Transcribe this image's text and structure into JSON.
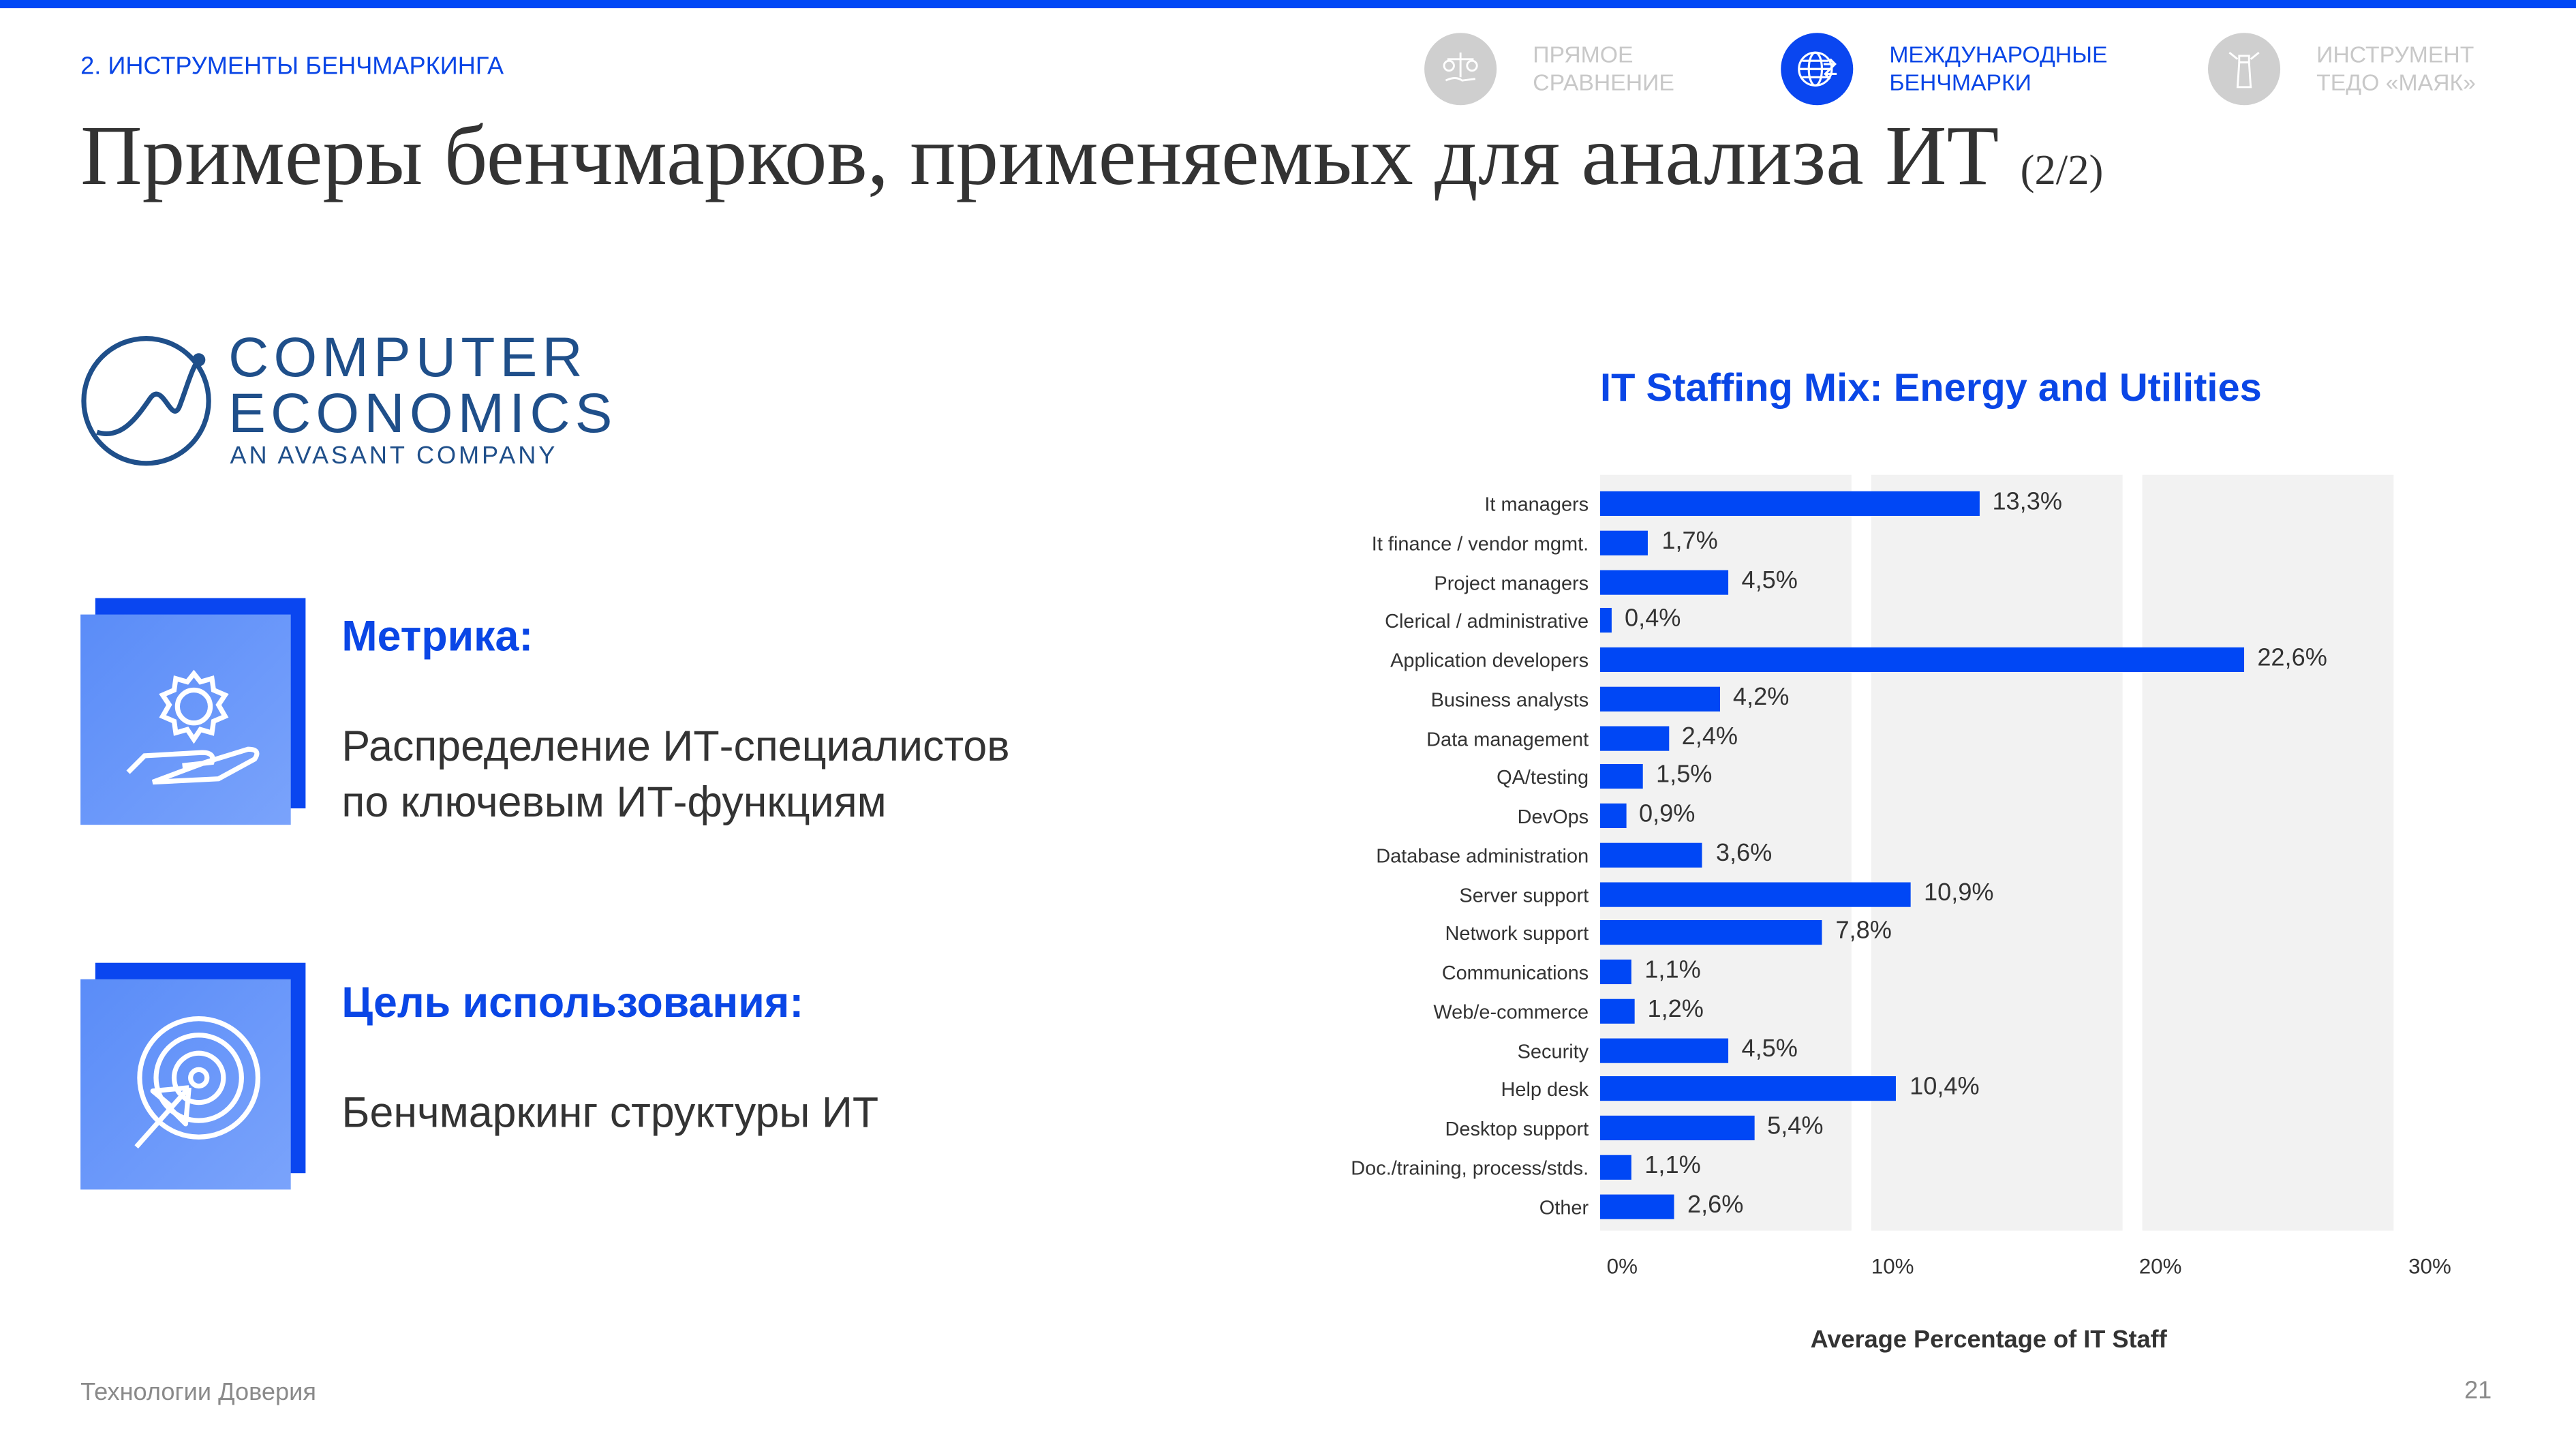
{
  "header": {
    "section": "2. ИНСТРУМЕНТЫ БЕНЧМАРКИНГА",
    "title": "Примеры бенчмарков, применяемых для анализа ИТ",
    "title_suffix": "(2/2)"
  },
  "nav": [
    {
      "line1": "ПРЯМОЕ",
      "line2": "СРАВНЕНИЕ",
      "icon": "scales-hand-icon",
      "active": false
    },
    {
      "line1": "МЕЖДУНАРОДНЫЕ",
      "line2": "БЕНЧМАРКИ",
      "icon": "globe-arrows-icon",
      "active": true
    },
    {
      "line1": "ИНСТРУМЕНТ",
      "line2": "ТЕДО «МАЯК»",
      "icon": "lighthouse-icon",
      "active": false
    }
  ],
  "logo": {
    "line1": "COMPUTER",
    "line2": "ECONOMICS",
    "line3": "AN AVASANT COMPANY"
  },
  "metric": {
    "heading": "Метрика:",
    "line1": "Распределение ИТ-специалистов",
    "line2": "по ключевым ИТ-функциям",
    "icon": "gear-hand-icon"
  },
  "purpose": {
    "heading": "Цель использования:",
    "text": "Бенчмаркинг структуры ИТ",
    "icon": "target-cursor-icon"
  },
  "footer": {
    "company": "Технологии Доверия",
    "page": "21"
  },
  "colors": {
    "accent": "#0047f5",
    "band": "#f2f2f2"
  },
  "chart_data": {
    "type": "bar",
    "orientation": "horizontal",
    "title": "IT Staffing Mix: Energy and Utilities",
    "xlabel": "Average Percentage of IT Staff",
    "ylabel": "",
    "xlim": [
      0,
      30
    ],
    "xticks": [
      "0%",
      "10%",
      "20%",
      "30%"
    ],
    "categories": [
      "It managers",
      "It finance / vendor mgmt.",
      "Project managers",
      "Clerical / administrative",
      "Application developers",
      "Business analysts",
      "Data management",
      "QA/testing",
      "DevOps",
      "Database administration",
      "Server support",
      "Network support",
      "Communications",
      "Web/e-commerce",
      "Security",
      "Help desk",
      "Desktop support",
      "Doc./training, process/stds.",
      "Other"
    ],
    "values": [
      13.3,
      1.7,
      4.5,
      0.4,
      22.6,
      4.2,
      2.4,
      1.5,
      0.9,
      3.6,
      10.9,
      7.8,
      1.1,
      1.2,
      4.5,
      10.4,
      5.4,
      1.1,
      2.6
    ],
    "labels": [
      "13,3%",
      "1,7%",
      "4,5%",
      "0,4%",
      "22,6%",
      "4,2%",
      "2,4%",
      "1,5%",
      "0,9%",
      "3,6%",
      "10,9%",
      "7,8%",
      "1,1%",
      "1,2%",
      "4,5%",
      "10,4%",
      "5,4%",
      "1,1%",
      "2,6%"
    ]
  }
}
